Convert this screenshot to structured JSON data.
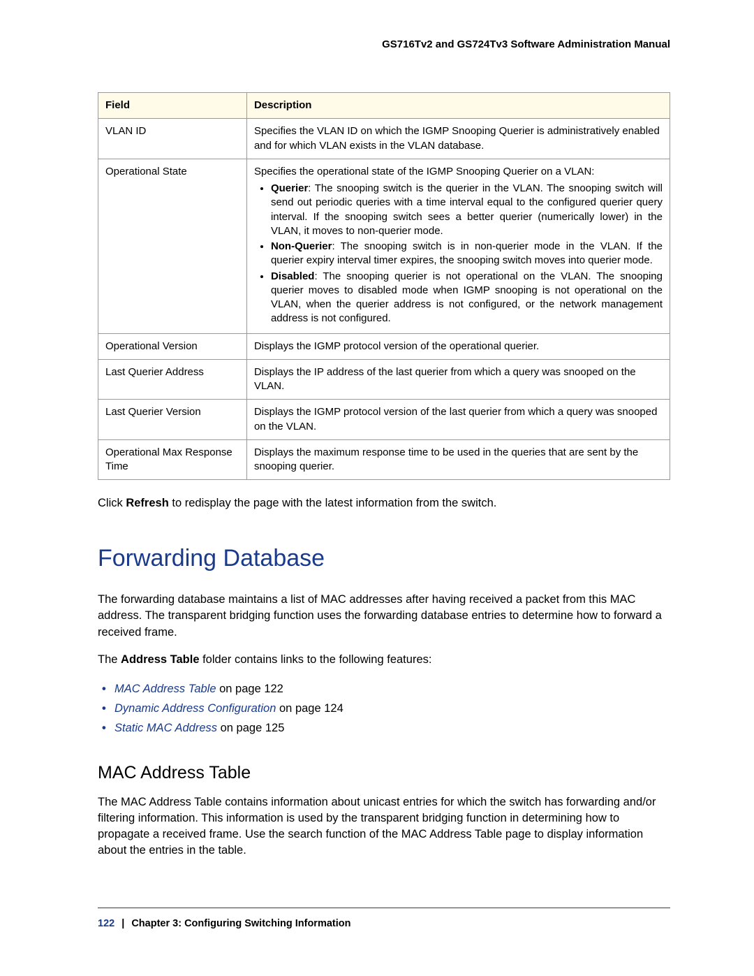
{
  "header": {
    "title": "GS716Tv2 and GS724Tv3 Software Administration Manual"
  },
  "table": {
    "columns": [
      "Field",
      "Description"
    ],
    "rows": [
      {
        "field": "VLAN ID",
        "desc": "Specifies the VLAN ID on which the IGMP Snooping Querier is administratively enabled and for which VLAN exists in the VLAN database."
      },
      {
        "field": "Operational State",
        "desc_intro": "Specifies the operational state of the IGMP Snooping Querier on a VLAN:",
        "bullets": [
          {
            "term": "Querier",
            "text": ": The snooping switch is the querier in the VLAN. The snooping switch will send out periodic queries with a time interval equal to the configured querier query interval. If the snooping switch sees a better querier (numerically lower) in the VLAN, it moves to non-querier mode."
          },
          {
            "term": "Non-Querier",
            "text": ": The snooping switch is in non-querier mode in the VLAN. If the querier expiry interval timer expires, the snooping switch moves into querier mode."
          },
          {
            "term": "Disabled",
            "text": ": The snooping querier is not operational on the VLAN. The snooping querier moves to disabled mode when IGMP snooping is not operational on the VLAN, when the querier address is not configured, or the network management address is not configured."
          }
        ]
      },
      {
        "field": "Operational Version",
        "desc": "Displays the IGMP protocol version of the operational querier."
      },
      {
        "field": "Last Querier Address",
        "desc": "Displays the IP address of the last querier from which a query was snooped on the VLAN."
      },
      {
        "field": "Last Querier Version",
        "desc": "Displays the IGMP protocol version of the last querier from which a query was snooped on the VLAN."
      },
      {
        "field": "Operational Max Response Time",
        "desc": "Displays the maximum response time to be used in the queries that are sent by the snooping querier."
      }
    ]
  },
  "refresh_text": {
    "pre": "Click ",
    "bold": "Refresh",
    "post": " to redisplay the page with the latest information from the switch."
  },
  "section1": {
    "heading": "Forwarding Database",
    "para1": "The forwarding database maintains a list of MAC addresses after having received a packet from this MAC address. The transparent bridging function uses the forwarding database entries to determine how to forward a received frame.",
    "para2_pre": "The ",
    "para2_bold": "Address Table",
    "para2_post": " folder contains links to the following features:",
    "links": [
      {
        "label": "MAC Address Table",
        "suffix": " on page 122"
      },
      {
        "label": "Dynamic Address Configuration",
        "suffix": " on page 124"
      },
      {
        "label": "Static MAC Address",
        "suffix": " on page 125"
      }
    ]
  },
  "section2": {
    "heading": "MAC Address Table",
    "para": "The MAC Address Table contains information about unicast entries for which the switch has forwarding and/or filtering information. This information is used by the transparent bridging function in determining how to propagate a received frame. Use the search function of the MAC Address Table page to display information about the entries in the table."
  },
  "footer": {
    "page_num": "122",
    "sep": "|",
    "chapter": "Chapter 3:  Configuring Switching Information"
  }
}
